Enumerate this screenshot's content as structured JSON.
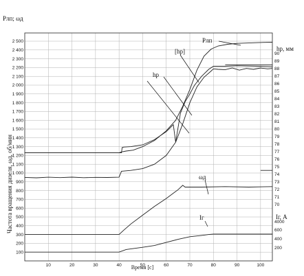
{
  "chart_data": {
    "type": "line",
    "xlabel": "Время [c]",
    "xlim": [
      0,
      105
    ],
    "x_ticks": [
      "10",
      "20",
      "30",
      "40",
      "50",
      "60",
      "70",
      "80",
      "90",
      "100"
    ],
    "left_axis": {
      "title": "Pлп; ωд",
      "ylabel": "Частота вращения дизеля, ωд, об/мин",
      "ylim": [
        0,
        2500
      ],
      "ticks": [
        "100",
        "200",
        "300",
        "400",
        "500",
        "600",
        "700",
        "800",
        "900",
        "1 000",
        "1 100",
        "1 200",
        "1 300",
        "1 400",
        "1 500",
        "1 600",
        "1 700",
        "1 800",
        "1 900",
        "2 000",
        "2 100",
        "2 200",
        "2 300",
        "2 400",
        "2 500"
      ]
    },
    "right_axis_h": {
      "title": "hр, мм",
      "ylim": [
        70,
        90
      ],
      "ticks": [
        "70",
        "71",
        "72",
        "73",
        "74",
        "75",
        "76",
        "77",
        "78",
        "79",
        "80",
        "81",
        "82",
        "83",
        "84",
        "85",
        "86",
        "87",
        "88",
        "89",
        "90"
      ]
    },
    "right_axis_i": {
      "title": "Iг, А",
      "ticks": [
        "200",
        "400",
        "600",
        "4000"
      ]
    },
    "series": [
      {
        "name": "Pлп",
        "x": [
          0,
          40,
          41,
          43,
          46,
          50,
          55,
          60,
          64,
          67,
          70,
          73,
          76,
          79,
          82,
          86,
          90,
          95,
          100,
          105
        ],
        "y": [
          1230,
          1230,
          1240,
          1250,
          1260,
          1300,
          1370,
          1480,
          1600,
          1760,
          1950,
          2170,
          2330,
          2410,
          2445,
          2465,
          2475,
          2480,
          2485,
          2488
        ]
      },
      {
        "name": "[hр]",
        "x": [
          0,
          41,
          41.3,
          42,
          45,
          50,
          55,
          60,
          63,
          64,
          66,
          68,
          70,
          72,
          75,
          78,
          80,
          85,
          90,
          100,
          105
        ],
        "y": [
          1230,
          1230,
          1290,
          1295,
          1300,
          1320,
          1380,
          1470,
          1550,
          1350,
          1680,
          1810,
          1900,
          2000,
          2100,
          2180,
          2215,
          2215,
          2220,
          2215,
          2210
        ]
      },
      {
        "name": "hр",
        "x": [
          0,
          5,
          10,
          15,
          20,
          25,
          30,
          35,
          40,
          41,
          45,
          50,
          55,
          60,
          64,
          67,
          70,
          73,
          76,
          79,
          80,
          82,
          85,
          88,
          91,
          94,
          97,
          100,
          103,
          105
        ],
        "y": [
          950,
          945,
          952,
          948,
          953,
          947,
          951,
          949,
          952,
          1020,
          1030,
          1050,
          1100,
          1200,
          1350,
          1560,
          1800,
          1980,
          2090,
          2160,
          2185,
          2180,
          2175,
          2195,
          2170,
          2190,
          2180,
          2195,
          2185,
          2190
        ]
      },
      {
        "name": "ωд",
        "x": [
          0,
          40,
          42,
          45,
          50,
          55,
          60,
          65,
          67,
          68,
          75,
          85,
          95,
          105
        ],
        "y": [
          300,
          300,
          350,
          420,
          520,
          620,
          710,
          810,
          860,
          840,
          840,
          845,
          840,
          845
        ]
      },
      {
        "name": "Iг",
        "x": [
          0,
          40,
          43,
          50,
          55,
          60,
          65,
          70,
          75,
          78,
          80,
          85,
          95,
          105
        ],
        "y": [
          100,
          100,
          130,
          155,
          175,
          210,
          245,
          275,
          290,
          300,
          305,
          305,
          305,
          305
        ]
      }
    ],
    "horizontal_lines": [
      {
        "y": 2230,
        "x": [
          85,
          105
        ]
      },
      {
        "y": 1030,
        "x": [
          100,
          105
        ]
      }
    ],
    "annotations": [
      "Pлп",
      "[hр]",
      "hр",
      "ωд",
      "Iг"
    ],
    "grid": true
  }
}
